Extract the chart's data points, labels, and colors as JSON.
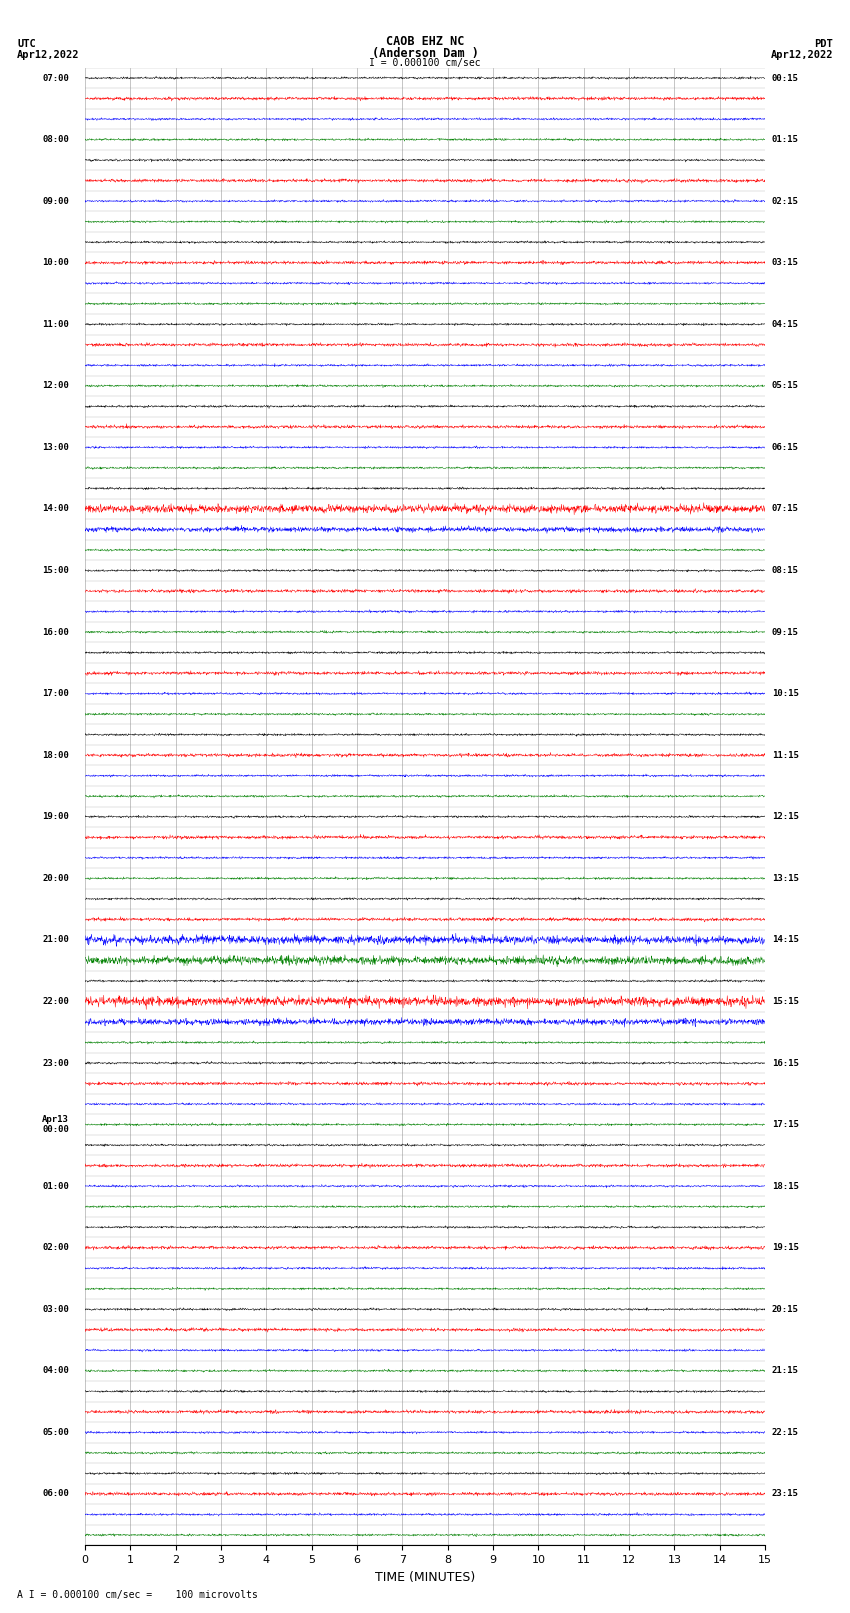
{
  "title_line1": "CAOB EHZ NC",
  "title_line2": "(Anderson Dam )",
  "title_scale": "I = 0.000100 cm/sec",
  "left_header_line1": "UTC",
  "left_header_line2": "Apr12,2022",
  "right_header_line1": "PDT",
  "right_header_line2": "Apr12,2022",
  "bottom_label": "TIME (MINUTES)",
  "bottom_note": "A I = 0.000100 cm/sec =    100 microvolts",
  "xmin": 0,
  "xmax": 15,
  "xticks": [
    0,
    1,
    2,
    3,
    4,
    5,
    6,
    7,
    8,
    9,
    10,
    11,
    12,
    13,
    14,
    15
  ],
  "num_traces": 72,
  "bg_color": "#ffffff",
  "grid_color": "#999999",
  "utc_labels": [
    "07:00",
    "",
    "",
    "08:00",
    "",
    "",
    "09:00",
    "",
    "",
    "10:00",
    "",
    "",
    "11:00",
    "",
    "",
    "12:00",
    "",
    "",
    "13:00",
    "",
    "",
    "14:00",
    "",
    "",
    "15:00",
    "",
    "",
    "16:00",
    "",
    "",
    "17:00",
    "",
    "",
    "18:00",
    "",
    "",
    "19:00",
    "",
    "",
    "20:00",
    "",
    "",
    "21:00",
    "",
    "",
    "22:00",
    "",
    "",
    "23:00",
    "",
    "",
    "Apr13\n00:00",
    "",
    "",
    "01:00",
    "",
    "",
    "02:00",
    "",
    "",
    "03:00",
    "",
    "",
    "04:00",
    "",
    "",
    "05:00",
    "",
    "",
    "06:00",
    "",
    ""
  ],
  "pdt_labels": [
    "00:15",
    "",
    "",
    "01:15",
    "",
    "",
    "02:15",
    "",
    "",
    "03:15",
    "",
    "",
    "04:15",
    "",
    "",
    "05:15",
    "",
    "",
    "06:15",
    "",
    "",
    "07:15",
    "",
    "",
    "08:15",
    "",
    "",
    "09:15",
    "",
    "",
    "10:15",
    "",
    "",
    "11:15",
    "",
    "",
    "12:15",
    "",
    "",
    "13:15",
    "",
    "",
    "14:15",
    "",
    "",
    "15:15",
    "",
    "",
    "16:15",
    "",
    "",
    "17:15",
    "",
    "",
    "18:15",
    "",
    "",
    "19:15",
    "",
    "",
    "20:15",
    "",
    "",
    "21:15",
    "",
    "",
    "22:15",
    "",
    "",
    "23:15",
    "",
    ""
  ],
  "trace_colors_cycle": [
    "#000000",
    "#ff0000",
    "#0000ff",
    "#008000"
  ],
  "noise_amplitude": 0.06,
  "seed": 42
}
